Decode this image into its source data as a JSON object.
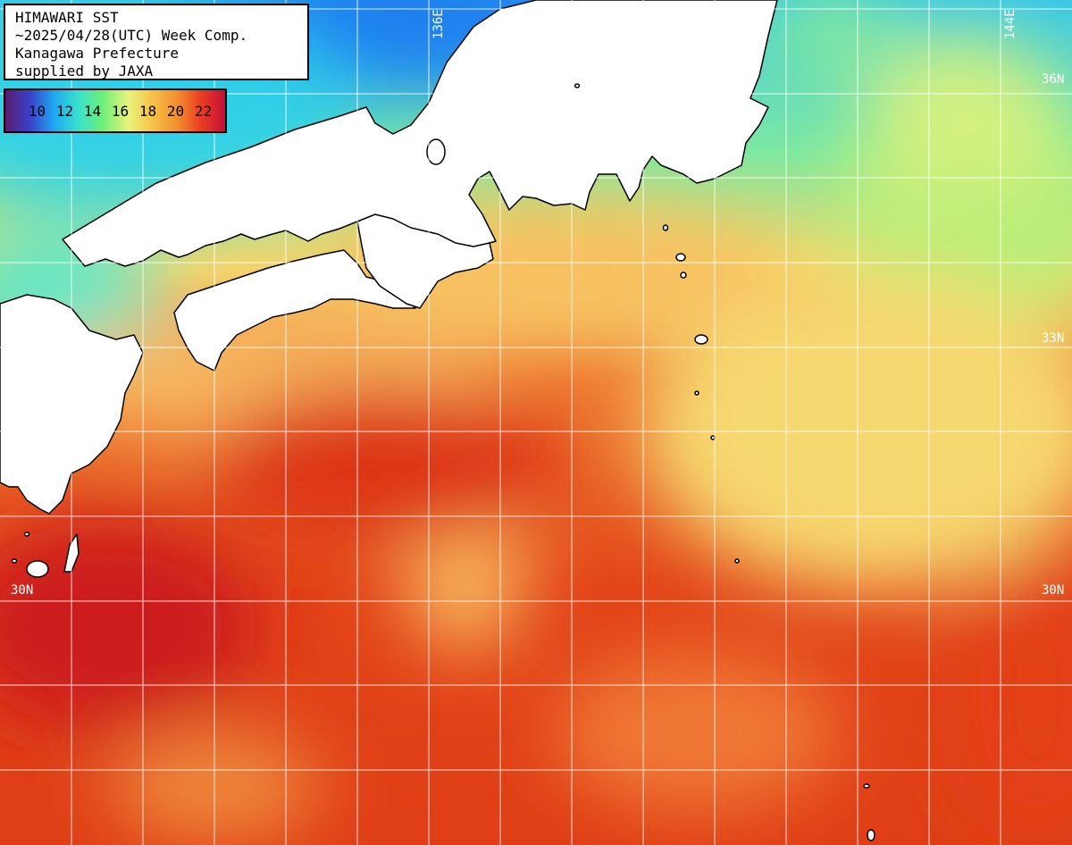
{
  "title_box": {
    "line1": "HIMAWARI SST",
    "line2": "~2025/04/28(UTC) Week Comp.",
    "line3": "Kanagawa Prefecture",
    "line4": "supplied by JAXA"
  },
  "color_scale": {
    "ticks": [
      "10",
      "12",
      "14",
      "16",
      "18",
      "20",
      "22"
    ],
    "colors": [
      "#5a1b6e",
      "#3a40c8",
      "#1fa6f0",
      "#38e0d0",
      "#6cf07a",
      "#e9f37a",
      "#f7c247",
      "#f39030",
      "#ea3d22",
      "#c40f3a"
    ]
  },
  "grid_labels": {
    "lon_136": "136E",
    "lon_144": "144E",
    "lat_36": "36N",
    "lat_33": "33N",
    "lat_30_left": "30N",
    "lat_30_right": "30N"
  },
  "colors": {
    "land": "#ffffff",
    "coastline": "#000000",
    "grid": "#ffffff"
  }
}
